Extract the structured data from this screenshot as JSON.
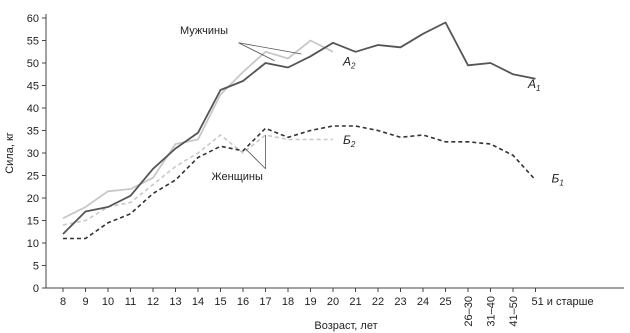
{
  "chart_data": {
    "type": "line",
    "title": "",
    "xlabel": "Возраст, лет",
    "ylabel": "Сила, кг",
    "ylim": [
      0,
      60
    ],
    "yticks": [
      0,
      5,
      10,
      15,
      20,
      25,
      30,
      35,
      40,
      45,
      50,
      55,
      60
    ],
    "categories": [
      "8",
      "9",
      "10",
      "11",
      "12",
      "13",
      "14",
      "15",
      "16",
      "17",
      "18",
      "19",
      "20",
      "21",
      "22",
      "23",
      "24",
      "25",
      "26–30",
      "31–40",
      "41–50",
      "51 и старше"
    ],
    "grid": false,
    "series": [
      {
        "name": "A1",
        "label": "A",
        "subscript": "1",
        "color": "#555555",
        "style": "solid",
        "values": [
          12,
          17,
          18,
          20.5,
          26.5,
          31,
          34.5,
          44,
          46,
          50,
          49,
          51.5,
          54.5,
          52.5,
          54,
          53.5,
          56.5,
          59,
          49.5,
          50,
          47.5,
          46.5
        ]
      },
      {
        "name": "A2",
        "label": "A",
        "subscript": "2",
        "color": "#c8c8c8",
        "style": "solid",
        "values": [
          15.5,
          18,
          21.5,
          22,
          24.5,
          32,
          33,
          43,
          48,
          52.5,
          51,
          55,
          52.5,
          null,
          null,
          null,
          null,
          null,
          null,
          null,
          null,
          null
        ]
      },
      {
        "name": "Б1",
        "label": "Б",
        "subscript": "1",
        "color": "#333333",
        "style": "dashed",
        "values": [
          11,
          11,
          14.5,
          16.5,
          21,
          24,
          29,
          31.5,
          30.5,
          35.5,
          33.5,
          35,
          36,
          36,
          35,
          33.5,
          34,
          32.5,
          32.5,
          32,
          29.5,
          24
        ]
      },
      {
        "name": "Б2",
        "label": "Б",
        "subscript": "2",
        "color": "#c8c8c8",
        "style": "dashed",
        "values": [
          14,
          15,
          18,
          19,
          23,
          27,
          30,
          34,
          30,
          34,
          33,
          33,
          33,
          null,
          null,
          null,
          null,
          null,
          null,
          null,
          null,
          null
        ]
      }
    ],
    "annotations": [
      "Мужчины",
      "Женщины"
    ]
  },
  "labels": {
    "men": "Мужчины",
    "women": "Женщины"
  }
}
